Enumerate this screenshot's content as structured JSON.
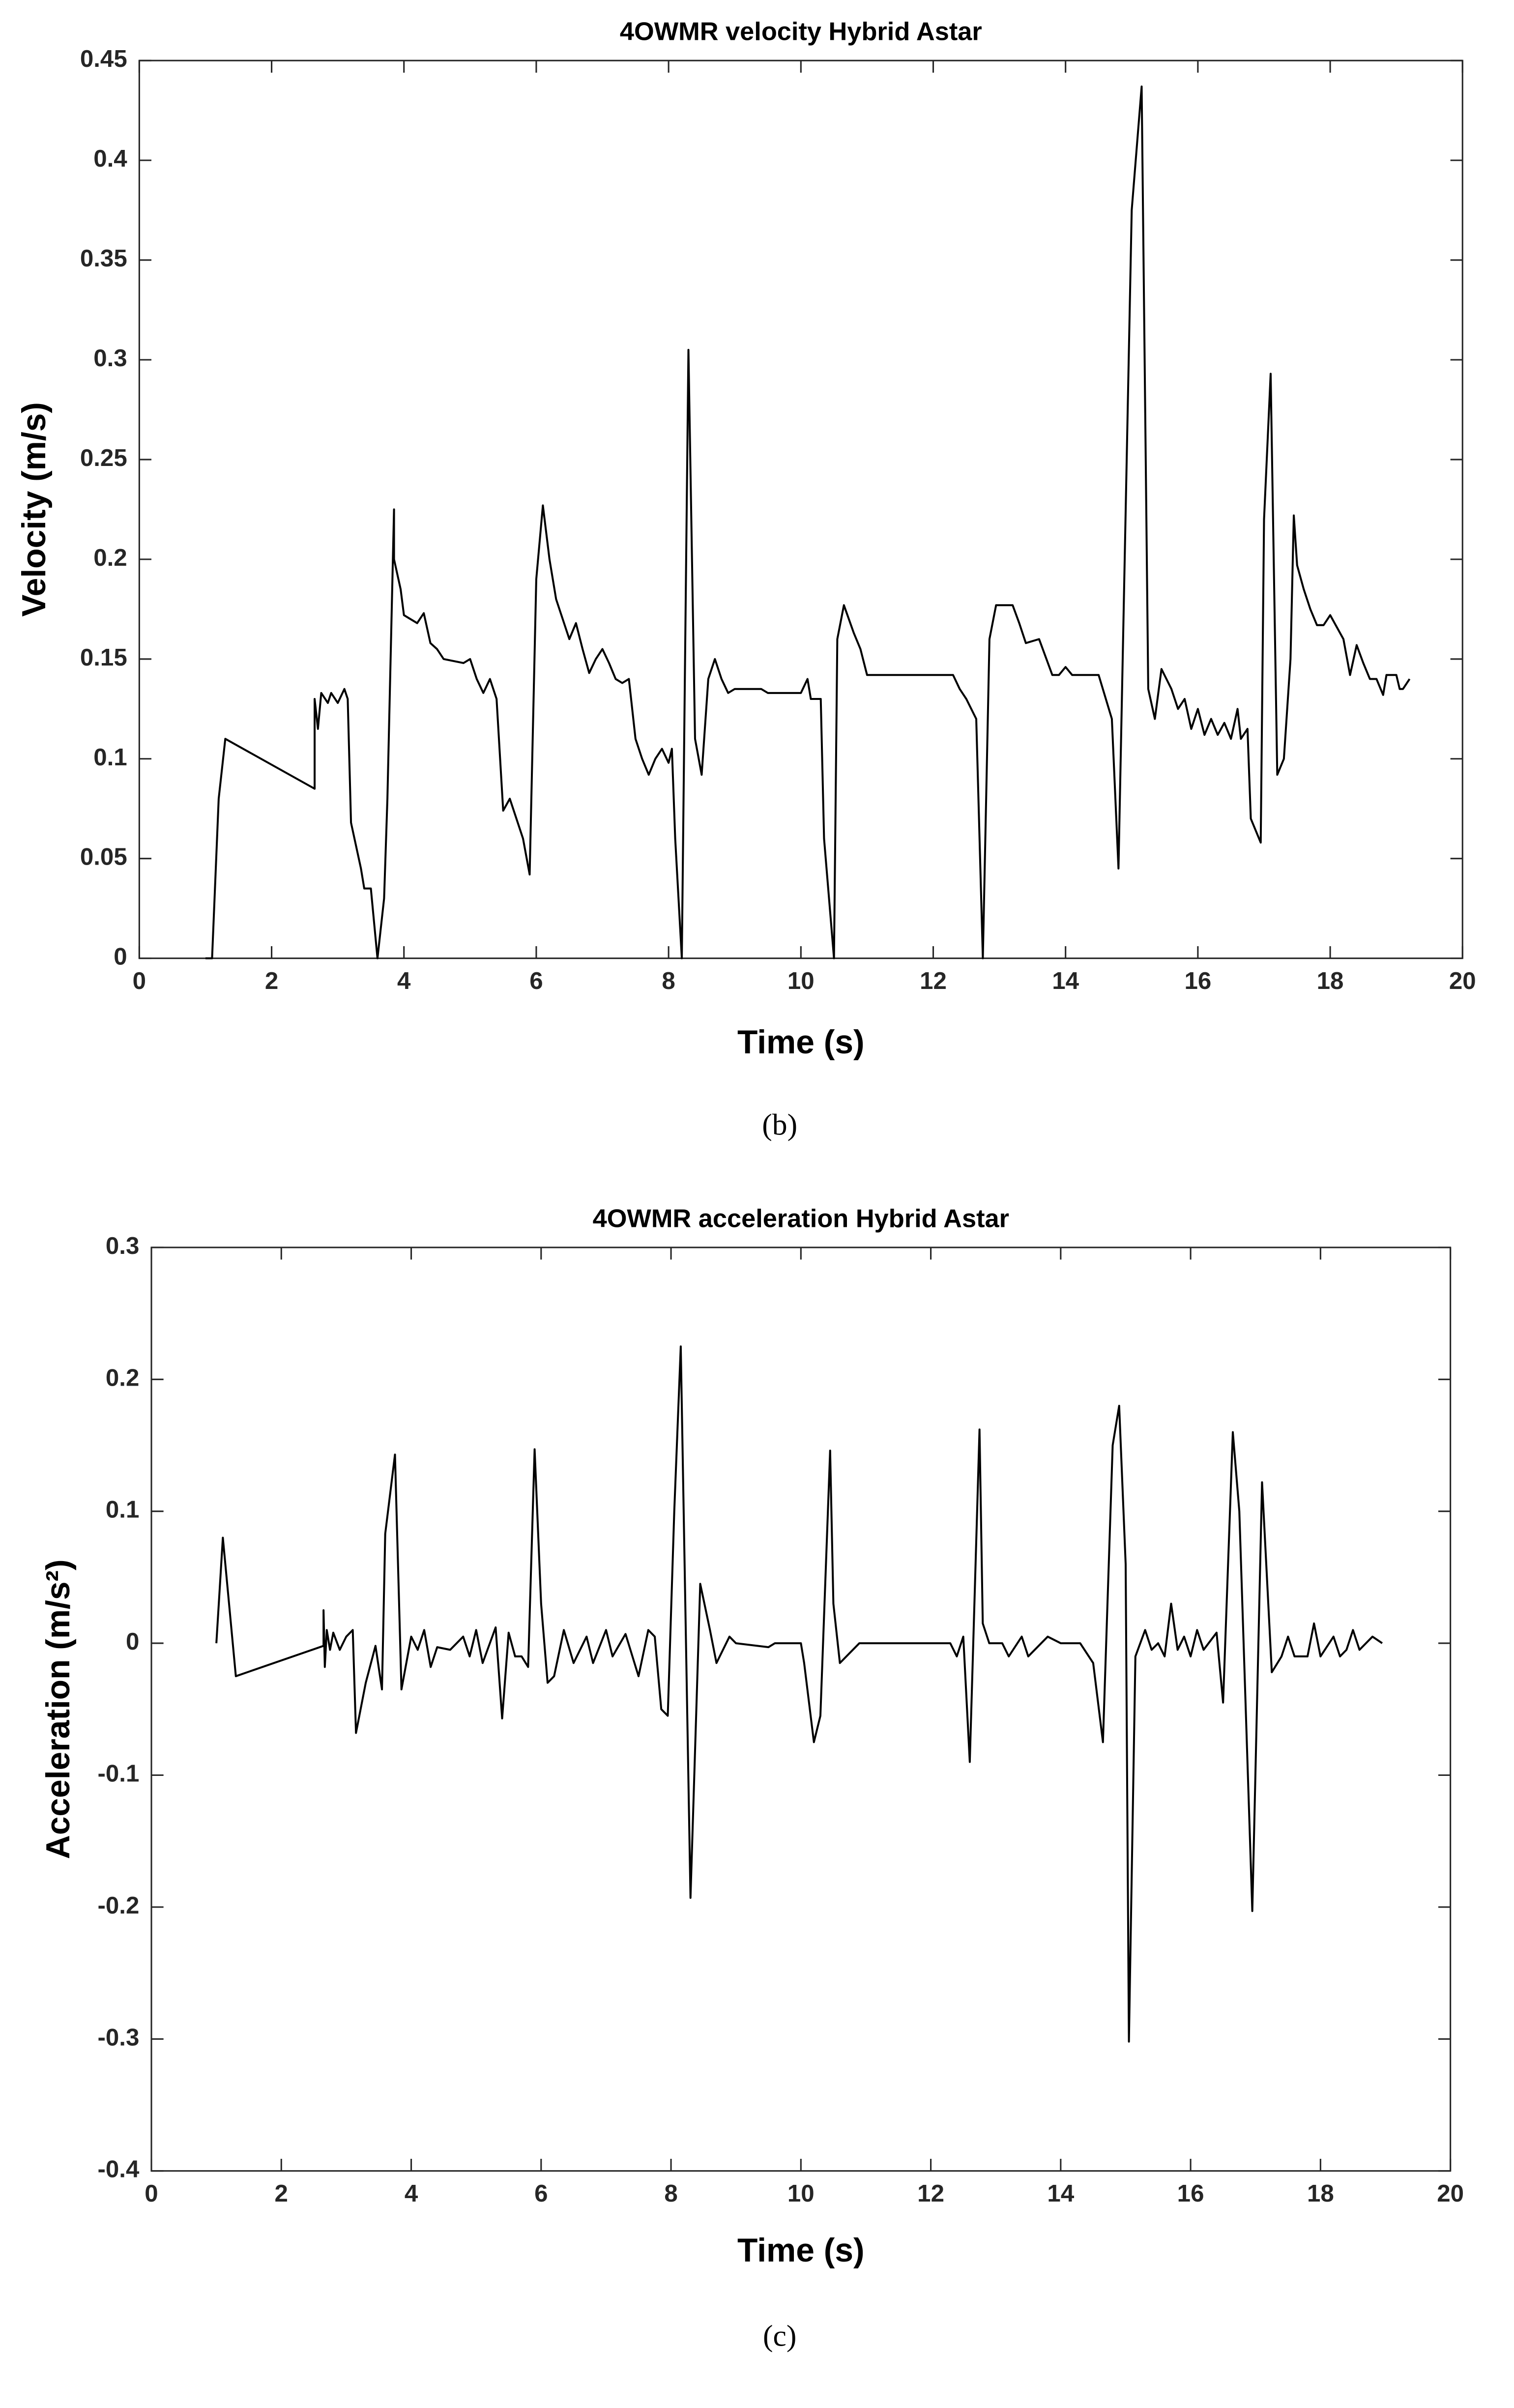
{
  "chart_data": [
    {
      "type": "line",
      "title": "4OWMR velocity Hybrid Astar",
      "x_label": "Time (s)",
      "y_label": "Velocity (m/s)",
      "caption": "(b)",
      "xlim": [
        0,
        20
      ],
      "xticks": [
        0,
        2,
        4,
        6,
        8,
        10,
        12,
        14,
        16,
        18,
        20
      ],
      "ylim": [
        0,
        0.45
      ],
      "yticks": [
        0,
        0.05,
        0.1,
        0.15,
        0.2,
        0.25,
        0.3,
        0.35,
        0.4,
        0.45
      ],
      "grid": false,
      "color": "#000000",
      "x": [
        1.0,
        1.1,
        1.2,
        1.3,
        2.65,
        2.65,
        2.7,
        2.75,
        2.85,
        2.9,
        3.0,
        3.1,
        3.15,
        3.2,
        3.35,
        3.4,
        3.5,
        3.6,
        3.7,
        3.75,
        3.85,
        3.85,
        3.95,
        4.0,
        4.1,
        4.2,
        4.3,
        4.4,
        4.5,
        4.6,
        4.9,
        5.0,
        5.1,
        5.2,
        5.3,
        5.4,
        5.5,
        5.6,
        5.8,
        5.9,
        6.0,
        6.1,
        6.2,
        6.3,
        6.4,
        6.5,
        6.6,
        6.7,
        6.8,
        6.9,
        7.0,
        7.1,
        7.2,
        7.3,
        7.4,
        7.5,
        7.6,
        7.7,
        7.8,
        7.9,
        8.0,
        8.05,
        8.1,
        8.2,
        8.3,
        8.4,
        8.5,
        8.6,
        8.7,
        8.8,
        8.9,
        9.0,
        9.4,
        9.5,
        10.0,
        10.1,
        10.15,
        10.3,
        10.35,
        10.5,
        10.55,
        10.65,
        10.8,
        10.9,
        11.0,
        12.3,
        12.4,
        12.5,
        12.65,
        12.75,
        12.85,
        12.95,
        13.2,
        13.3,
        13.4,
        13.6,
        13.8,
        13.9,
        14.0,
        14.1,
        14.5,
        14.7,
        14.8,
        15.0,
        15.15,
        15.25,
        15.35,
        15.45,
        15.6,
        15.7,
        15.8,
        15.9,
        16.0,
        16.1,
        16.2,
        16.3,
        16.4,
        16.5,
        16.6,
        16.65,
        16.75,
        16.8,
        16.95,
        17.0,
        17.1,
        17.2,
        17.3,
        17.4,
        17.45,
        17.5,
        17.6,
        17.7,
        17.8,
        17.9,
        18.0,
        18.2,
        18.3,
        18.4,
        18.5,
        18.6,
        18.7,
        18.8,
        18.85,
        19.0,
        19.05,
        19.1,
        19.2
      ],
      "values": [
        0,
        0,
        0.08,
        0.11,
        0.085,
        0.13,
        0.115,
        0.133,
        0.128,
        0.133,
        0.128,
        0.135,
        0.13,
        0.068,
        0.045,
        0.035,
        0.035,
        0,
        0.03,
        0.08,
        0.225,
        0.2,
        0.185,
        0.172,
        0.17,
        0.168,
        0.173,
        0.158,
        0.155,
        0.15,
        0.148,
        0.15,
        0.14,
        0.133,
        0.14,
        0.13,
        0.074,
        0.08,
        0.06,
        0.042,
        0.19,
        0.227,
        0.2,
        0.18,
        0.17,
        0.16,
        0.168,
        0.155,
        0.143,
        0.15,
        0.155,
        0.148,
        0.14,
        0.138,
        0.14,
        0.11,
        0.1,
        0.092,
        0.1,
        0.105,
        0.098,
        0.105,
        0.06,
        0,
        0.305,
        0.11,
        0.092,
        0.14,
        0.15,
        0.14,
        0.133,
        0.135,
        0.135,
        0.133,
        0.133,
        0.14,
        0.13,
        0.13,
        0.06,
        0,
        0.16,
        0.177,
        0.163,
        0.155,
        0.142,
        0.142,
        0.135,
        0.13,
        0.12,
        0,
        0.16,
        0.177,
        0.177,
        0.168,
        0.158,
        0.16,
        0.142,
        0.142,
        0.146,
        0.142,
        0.142,
        0.12,
        0.045,
        0.375,
        0.437,
        0.135,
        0.12,
        0.145,
        0.135,
        0.125,
        0.13,
        0.115,
        0.125,
        0.112,
        0.12,
        0.112,
        0.118,
        0.11,
        0.125,
        0.11,
        0.115,
        0.07,
        0.058,
        0.22,
        0.293,
        0.092,
        0.1,
        0.15,
        0.222,
        0.197,
        0.185,
        0.175,
        0.167,
        0.167,
        0.172,
        0.16,
        0.142,
        0.157,
        0.148,
        0.14,
        0.14,
        0.132,
        0.142,
        0.142,
        0.135,
        0.135,
        0.14
      ]
    },
    {
      "type": "line",
      "title": "4OWMR acceleration Hybrid Astar",
      "x_label": "Time (s)",
      "y_label": "Acceleration (m/s²)",
      "caption": "(c)",
      "xlim": [
        0,
        20
      ],
      "xticks": [
        0,
        2,
        4,
        6,
        8,
        10,
        12,
        14,
        16,
        18,
        20
      ],
      "ylim": [
        -0.4,
        0.3
      ],
      "yticks": [
        -0.4,
        -0.3,
        -0.2,
        -0.1,
        0,
        0.1,
        0.2,
        0.3
      ],
      "grid": false,
      "color": "#000000",
      "x": [
        1.0,
        1.1,
        1.3,
        2.65,
        2.65,
        2.67,
        2.7,
        2.75,
        2.8,
        2.9,
        3.0,
        3.1,
        3.15,
        3.3,
        3.45,
        3.55,
        3.6,
        3.75,
        3.85,
        4.0,
        4.1,
        4.2,
        4.3,
        4.4,
        4.6,
        4.8,
        4.9,
        5.0,
        5.1,
        5.3,
        5.4,
        5.5,
        5.6,
        5.7,
        5.8,
        5.9,
        6.0,
        6.1,
        6.2,
        6.35,
        6.5,
        6.7,
        6.8,
        7.0,
        7.1,
        7.3,
        7.5,
        7.65,
        7.75,
        7.85,
        7.95,
        8.05,
        8.15,
        8.3,
        8.45,
        8.6,
        8.7,
        8.9,
        9.0,
        9.5,
        9.6,
        10.0,
        10.05,
        10.2,
        10.3,
        10.45,
        10.5,
        10.6,
        10.9,
        12.3,
        12.4,
        12.5,
        12.6,
        12.75,
        12.8,
        12.9,
        13.1,
        13.2,
        13.4,
        13.5,
        13.7,
        13.8,
        14.0,
        14.3,
        14.5,
        14.65,
        14.8,
        14.9,
        15.0,
        15.05,
        15.15,
        15.3,
        15.4,
        15.5,
        15.6,
        15.7,
        15.8,
        15.9,
        16.0,
        16.1,
        16.2,
        16.4,
        16.5,
        16.65,
        16.75,
        16.95,
        17.1,
        17.25,
        17.4,
        17.5,
        17.6,
        17.8,
        17.9,
        18.0,
        18.2,
        18.3,
        18.4,
        18.5,
        18.6,
        18.8,
        18.95
      ],
      "values": [
        0,
        0.08,
        -0.025,
        -0.002,
        0.025,
        -0.018,
        0.01,
        -0.005,
        0.008,
        -0.005,
        0.005,
        0.01,
        -0.068,
        -0.03,
        -0.002,
        -0.035,
        0.083,
        0.143,
        -0.035,
        0.005,
        -0.005,
        0.01,
        -0.018,
        -0.003,
        -0.005,
        0.005,
        -0.01,
        0.01,
        -0.015,
        0.012,
        -0.057,
        0.008,
        -0.01,
        -0.01,
        -0.018,
        0.147,
        0.03,
        -0.03,
        -0.025,
        0.01,
        -0.015,
        0.005,
        -0.015,
        0.01,
        -0.01,
        0.007,
        -0.025,
        0.01,
        0.005,
        -0.05,
        -0.055,
        0.1,
        0.225,
        -0.193,
        0.045,
        0.01,
        -0.015,
        0.005,
        0,
        -0.003,
        0,
        0,
        -0.015,
        -0.075,
        -0.055,
        0.146,
        0.03,
        -0.015,
        0,
        0,
        -0.01,
        0.005,
        -0.09,
        0.162,
        0.015,
        0,
        0,
        -0.01,
        0.005,
        -0.01,
        0,
        0.005,
        0,
        0,
        -0.015,
        -0.075,
        0.15,
        0.18,
        0.06,
        -0.302,
        -0.01,
        0.01,
        -0.005,
        0,
        -0.01,
        0.03,
        -0.005,
        0.005,
        -0.01,
        0.01,
        -0.005,
        0.008,
        -0.045,
        0.16,
        0.1,
        -0.203,
        0.122,
        -0.022,
        -0.01,
        0.005,
        -0.01,
        -0.01,
        0.015,
        -0.01,
        0.005,
        -0.01,
        -0.005,
        0.01,
        -0.005,
        0.005,
        0
      ]
    }
  ]
}
